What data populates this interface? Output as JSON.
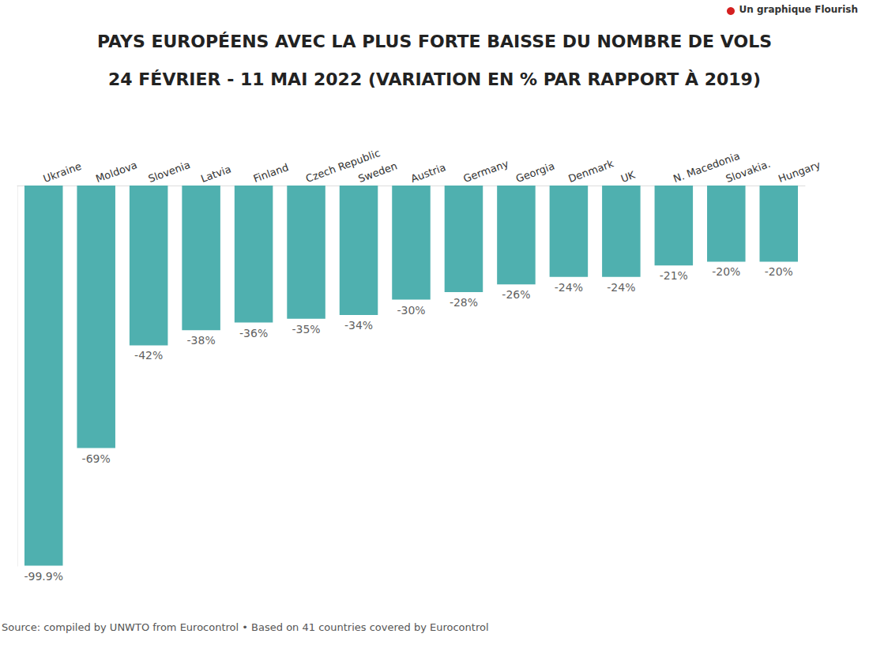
{
  "chart_data": {
    "type": "bar",
    "title": "PAYS EUROPÉENS AVEC LA PLUS FORTE BAISSE DU NOMBRE DE VOLS",
    "subtitle": "24 FÉVRIER - 11 MAI 2022 (VARIATION EN % PAR RAPPORT À 2019)",
    "credit": "Un graphique Flourish",
    "source": "Source: compiled by UNWTO from Eurocontrol • Based on 41 countries covered by Eurocontrol",
    "categories": [
      "Ukraine",
      "Moldova",
      "Slovenia",
      "Latvia",
      "Finland",
      "Czech Republic",
      "Sweden",
      "Austria",
      "Germany",
      "Georgia",
      "Denmark",
      "UK",
      "N. Macedonia",
      "Slovakia.",
      "Hungary"
    ],
    "values": [
      -99.9,
      -69,
      -42,
      -38,
      -36,
      -35,
      -34,
      -30,
      -28,
      -26,
      -24,
      -24,
      -21,
      -20,
      -20
    ],
    "value_labels": [
      "-99.9%",
      "-69%",
      "-42%",
      "-38%",
      "-36%",
      "-35%",
      "-34%",
      "-30%",
      "-28%",
      "-26%",
      "-24%",
      "-24%",
      "-21%",
      "-20%",
      "-20%"
    ],
    "color": "#4fb0af",
    "ylim": [
      -100,
      0
    ],
    "grid": false,
    "data_labels": true,
    "tick_labels": "x"
  }
}
